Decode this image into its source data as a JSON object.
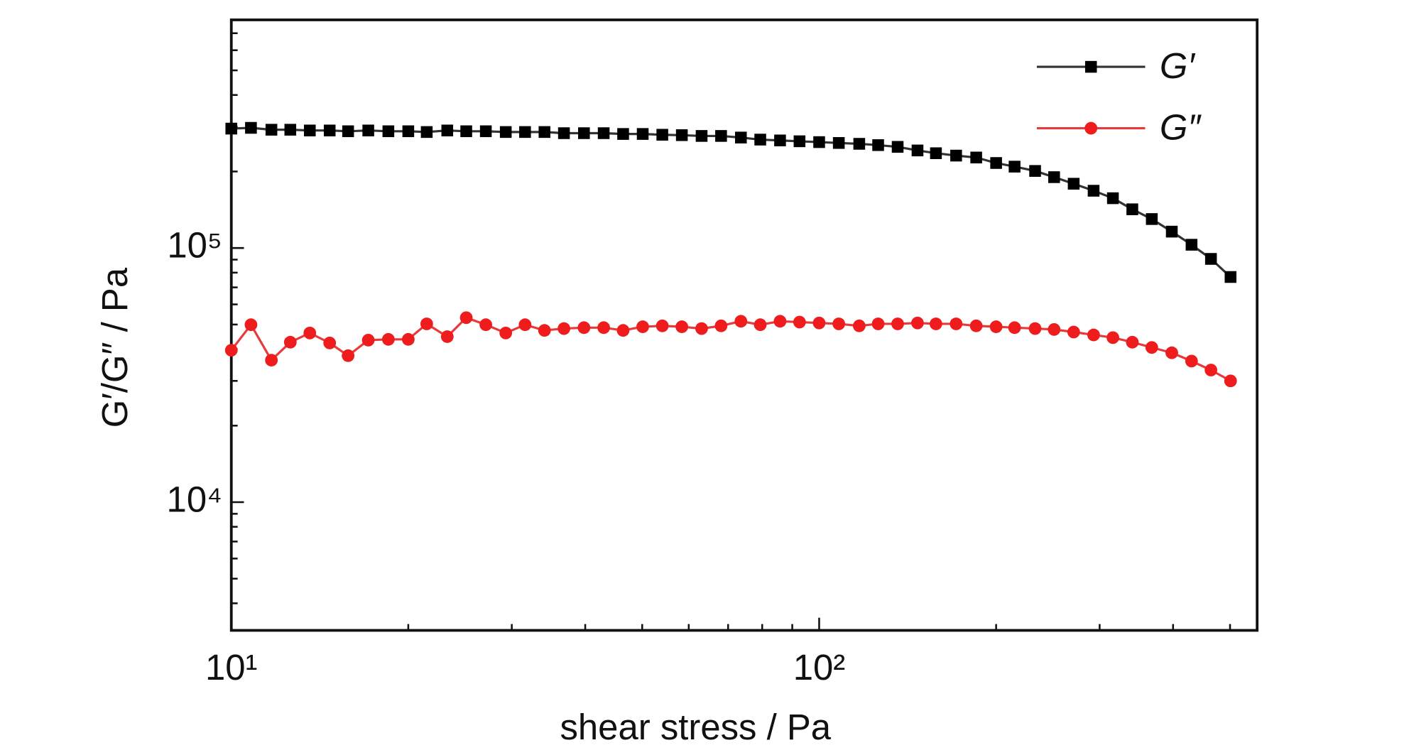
{
  "chart_data": {
    "type": "line",
    "xlabel": "shear stress / Pa",
    "ylabel": "G′/G″ / Pa",
    "xscale": "log",
    "yscale": "log",
    "xlim": [
      10,
      556
    ],
    "ylim": [
      3130,
      790000
    ],
    "xticks": [
      {
        "value": 10,
        "label": "10¹"
      },
      {
        "value": 100,
        "label": "10²"
      }
    ],
    "xminorticks": [
      20,
      30,
      40,
      50,
      60,
      70,
      80,
      90,
      200,
      300,
      400,
      500
    ],
    "yticks": [
      {
        "value": 10000,
        "label": "10⁴"
      },
      {
        "value": 100000,
        "label": "10⁵"
      }
    ],
    "yminorticks": [
      4000,
      5000,
      6000,
      7000,
      8000,
      9000,
      20000,
      30000,
      40000,
      50000,
      60000,
      70000,
      80000,
      90000,
      200000,
      300000,
      400000,
      500000,
      600000,
      700000
    ],
    "legend": "upper right",
    "x": [
      10,
      10.8,
      11.7,
      12.6,
      13.6,
      14.7,
      15.8,
      17.1,
      18.5,
      20.0,
      21.5,
      23.3,
      25.1,
      27.1,
      29.3,
      31.6,
      34.1,
      36.8,
      39.8,
      43.0,
      46.4,
      50.1,
      54.1,
      58.4,
      63.1,
      68.1,
      73.6,
      79.4,
      85.8,
      92.6,
      100,
      108,
      117,
      126,
      136,
      147,
      158,
      171,
      185,
      200,
      215,
      233,
      251,
      271,
      293,
      316,
      341,
      368,
      398,
      430,
      464,
      501
    ],
    "series": [
      {
        "name": "G′",
        "color": "#000000",
        "line_color": "#333333",
        "marker": "square",
        "values": [
          295000,
          297000,
          292000,
          292000,
          290000,
          290000,
          288000,
          290000,
          288000,
          288000,
          286000,
          290000,
          288000,
          288000,
          286000,
          286000,
          286000,
          283000,
          283000,
          283000,
          281000,
          281000,
          279000,
          278000,
          276000,
          276000,
          272000,
          267000,
          265000,
          263000,
          261000,
          259000,
          257000,
          254000,
          250000,
          242000,
          236000,
          231000,
          227000,
          216000,
          209000,
          201000,
          190000,
          179000,
          168000,
          157000,
          142000,
          130000,
          116000,
          103000,
          90600,
          76900
        ]
      },
      {
        "name": "G″",
        "color": "#ee1c1c",
        "line_color": "#e83a3a",
        "marker": "circle",
        "values": [
          39600,
          49900,
          36200,
          42600,
          46300,
          42300,
          37700,
          43400,
          43700,
          43700,
          50300,
          44800,
          53200,
          49900,
          46300,
          49900,
          47400,
          48200,
          48600,
          48600,
          47400,
          49000,
          49400,
          49000,
          48200,
          49400,
          51500,
          49900,
          51500,
          51100,
          50700,
          50300,
          49400,
          50300,
          50300,
          50700,
          50300,
          50300,
          49400,
          49000,
          48600,
          48200,
          47800,
          46700,
          45500,
          44400,
          42600,
          40600,
          38700,
          35900,
          33100,
          30000
        ]
      }
    ]
  }
}
